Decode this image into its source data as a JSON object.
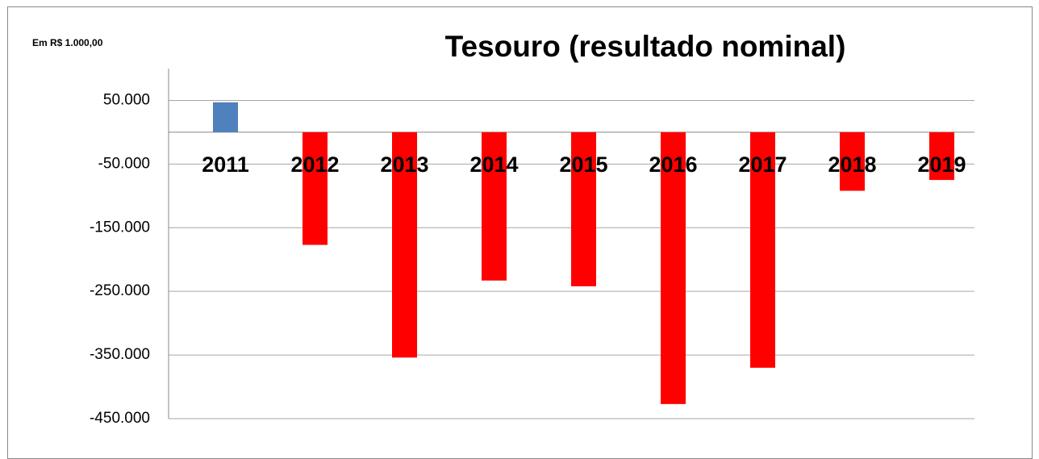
{
  "chart_data": {
    "type": "bar",
    "title": "Tesouro (resultado nominal)",
    "subtitle": "Em R$ 1.000,00",
    "categories": [
      "2011",
      "2012",
      "2013",
      "2014",
      "2015",
      "2016",
      "2017",
      "2018",
      "2019"
    ],
    "values": [
      47000,
      -177000,
      -354000,
      -233000,
      -242000,
      -427000,
      -370000,
      -92000,
      -75000
    ],
    "colors": [
      "#4f81bd",
      "#ff0000",
      "#ff0000",
      "#ff0000",
      "#ff0000",
      "#ff0000",
      "#ff0000",
      "#ff0000",
      "#ff0000"
    ],
    "ylim": [
      -450000,
      100000
    ],
    "yticks": [
      {
        "value": 50000,
        "label": "50.000"
      },
      {
        "value": -50000,
        "label": "-50.000"
      },
      {
        "value": -150000,
        "label": "-150.000"
      },
      {
        "value": -250000,
        "label": "-250.000"
      },
      {
        "value": -350000,
        "label": "-350.000"
      },
      {
        "value": -450000,
        "label": "-450.000"
      }
    ],
    "grid": true
  }
}
